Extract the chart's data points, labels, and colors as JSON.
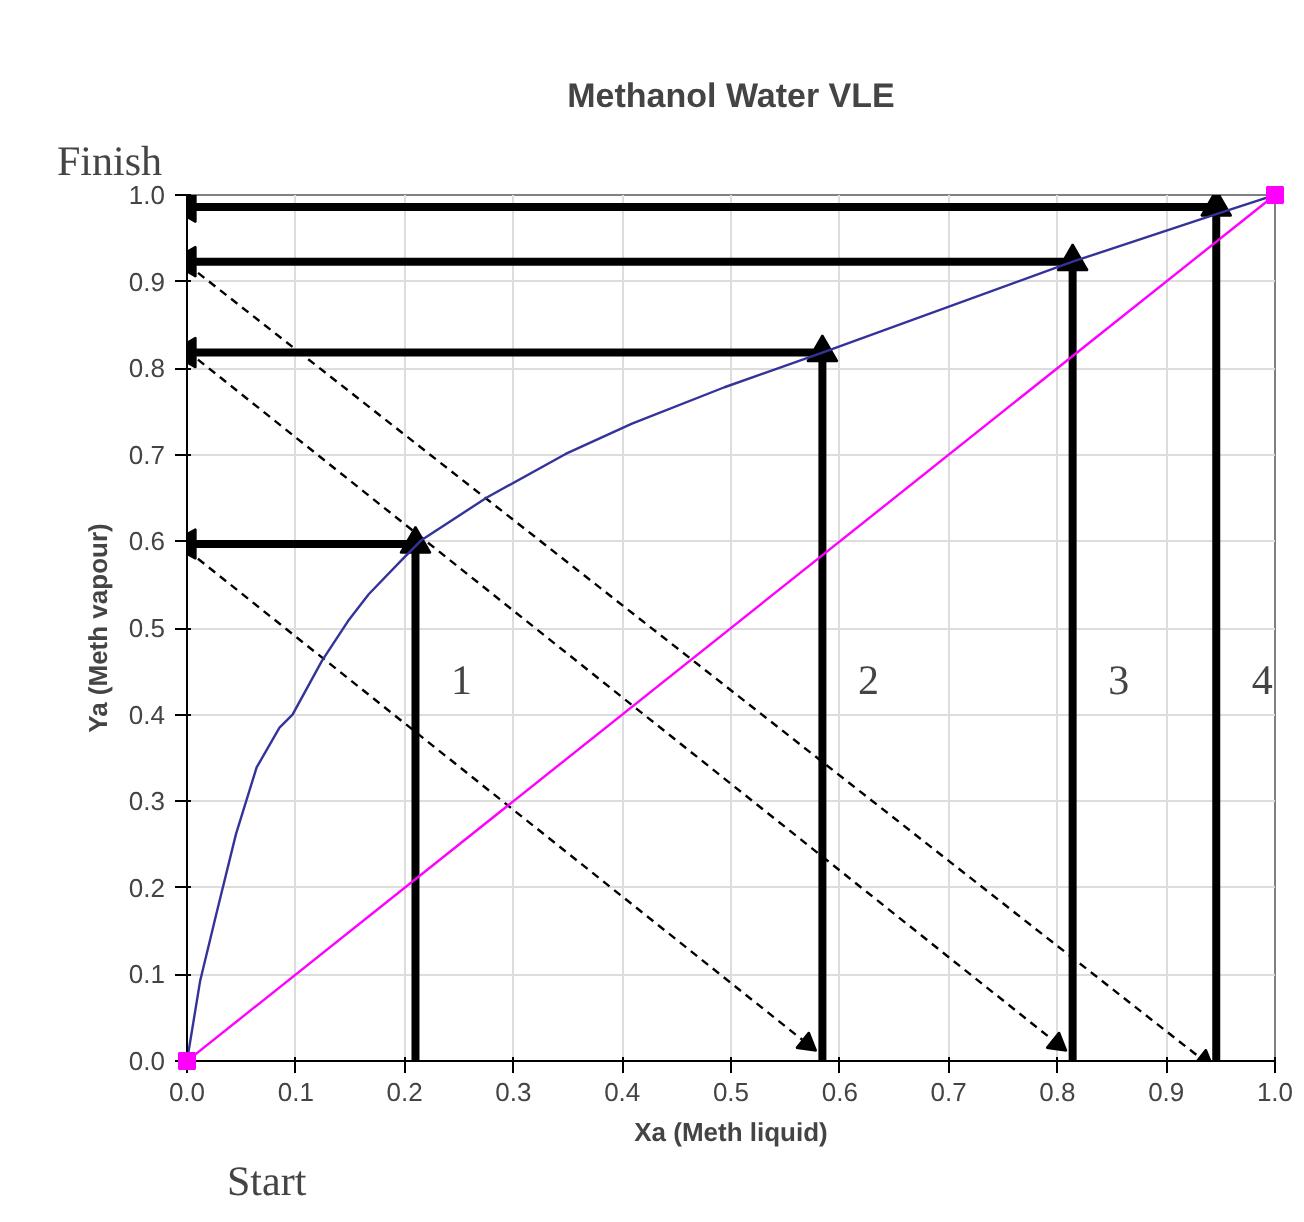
{
  "chart_data": {
    "type": "line",
    "title": "Methanol Water VLE",
    "xlabel": "Xa (Meth liquid)",
    "ylabel": "Ya (Meth vapour)",
    "xlim": [
      0,
      1
    ],
    "ylim": [
      0,
      1
    ],
    "xticks": [
      {
        "value": 0,
        "label": "0.0"
      },
      {
        "value": 0.1,
        "label": "0.1"
      },
      {
        "value": 0.2,
        "label": "0.2"
      },
      {
        "value": 0.3,
        "label": "0.3"
      },
      {
        "value": 0.4,
        "label": "0.4"
      },
      {
        "value": 0.5,
        "label": "0.5"
      },
      {
        "value": 0.6,
        "label": "0.6"
      },
      {
        "value": 0.7,
        "label": "0.7"
      },
      {
        "value": 0.8,
        "label": "0.8"
      },
      {
        "value": 0.9,
        "label": "0.9"
      },
      {
        "value": 1,
        "label": "1.0"
      }
    ],
    "yticks": [
      {
        "value": 0,
        "label": "0.0"
      },
      {
        "value": 0.1,
        "label": "0.1"
      },
      {
        "value": 0.2,
        "label": "0.2"
      },
      {
        "value": 0.3,
        "label": "0.3"
      },
      {
        "value": 0.4,
        "label": "0.4"
      },
      {
        "value": 0.5,
        "label": "0.5"
      },
      {
        "value": 0.6,
        "label": "0.6"
      },
      {
        "value": 0.7,
        "label": "0.7"
      },
      {
        "value": 0.8,
        "label": "0.8"
      },
      {
        "value": 0.9,
        "label": "0.9"
      },
      {
        "value": 1,
        "label": "1.0"
      }
    ],
    "grid": true,
    "series": [
      {
        "color": "#333399",
        "marker": "none",
        "x": [
          0,
          0.012,
          0.027,
          0.045,
          0.064,
          0.085,
          0.097,
          0.124,
          0.148,
          0.167,
          0.197,
          0.215,
          0.276,
          0.348,
          0.409,
          0.494,
          0.584,
          0.814,
          0.946,
          1.0
        ],
        "values": [
          0,
          0.092,
          0.17,
          0.262,
          0.339,
          0.385,
          0.4,
          0.462,
          0.508,
          0.539,
          0.578,
          0.601,
          0.651,
          0.701,
          0.736,
          0.778,
          0.818,
          0.923,
          0.978,
          1.0
        ]
      },
      {
        "color": "#ff00ff",
        "marker": "square",
        "x": [
          0,
          1
        ],
        "values": [
          0,
          1
        ]
      },
      {
        "color": "#000000",
        "marker": "triangle",
        "line_style": "solid",
        "x": [
          0.21,
          0.21
        ],
        "values": [
          0,
          0.597
        ]
      },
      {
        "color": "#000000",
        "marker": "triangle",
        "line_style": "solid",
        "x": [
          0.21,
          0
        ],
        "values": [
          0.597,
          0.597
        ]
      },
      {
        "color": "#000000",
        "marker": "triangle",
        "line_style": "dashed",
        "x": [
          0,
          0.57
        ],
        "values": [
          0.59,
          0.02
        ]
      },
      {
        "color": "#000000",
        "marker": "triangle",
        "line_style": "solid",
        "x": [
          0.584,
          0.584
        ],
        "values": [
          0,
          0.818
        ]
      },
      {
        "color": "#000000",
        "marker": "triangle",
        "line_style": "solid",
        "x": [
          0.584,
          0
        ],
        "values": [
          0.818,
          0.818
        ]
      },
      {
        "color": "#000000",
        "marker": "triangle",
        "line_style": "dashed",
        "x": [
          0,
          0.8
        ],
        "values": [
          0.82,
          0.02
        ]
      },
      {
        "color": "#000000",
        "marker": "triangle",
        "line_style": "solid",
        "x": [
          0.814,
          0.814
        ],
        "values": [
          0,
          0.923
        ]
      },
      {
        "color": "#000000",
        "marker": "triangle",
        "line_style": "solid",
        "x": [
          0.814,
          0
        ],
        "values": [
          0.923,
          0.923
        ]
      },
      {
        "color": "#000000",
        "marker": "triangle",
        "line_style": "dashed",
        "x": [
          0,
          0.935
        ],
        "values": [
          0.92,
          0.0
        ]
      },
      {
        "color": "#000000",
        "marker": "triangle",
        "line_style": "solid",
        "x": [
          0.946,
          0.946
        ],
        "values": [
          0,
          0.986
        ]
      },
      {
        "color": "#000000",
        "marker": "triangle",
        "line_style": "solid",
        "x": [
          0.946,
          0
        ],
        "values": [
          0.986,
          0.986
        ]
      }
    ],
    "annotations": [
      "1",
      "2",
      "3",
      "4",
      "Finish",
      "Start"
    ]
  }
}
